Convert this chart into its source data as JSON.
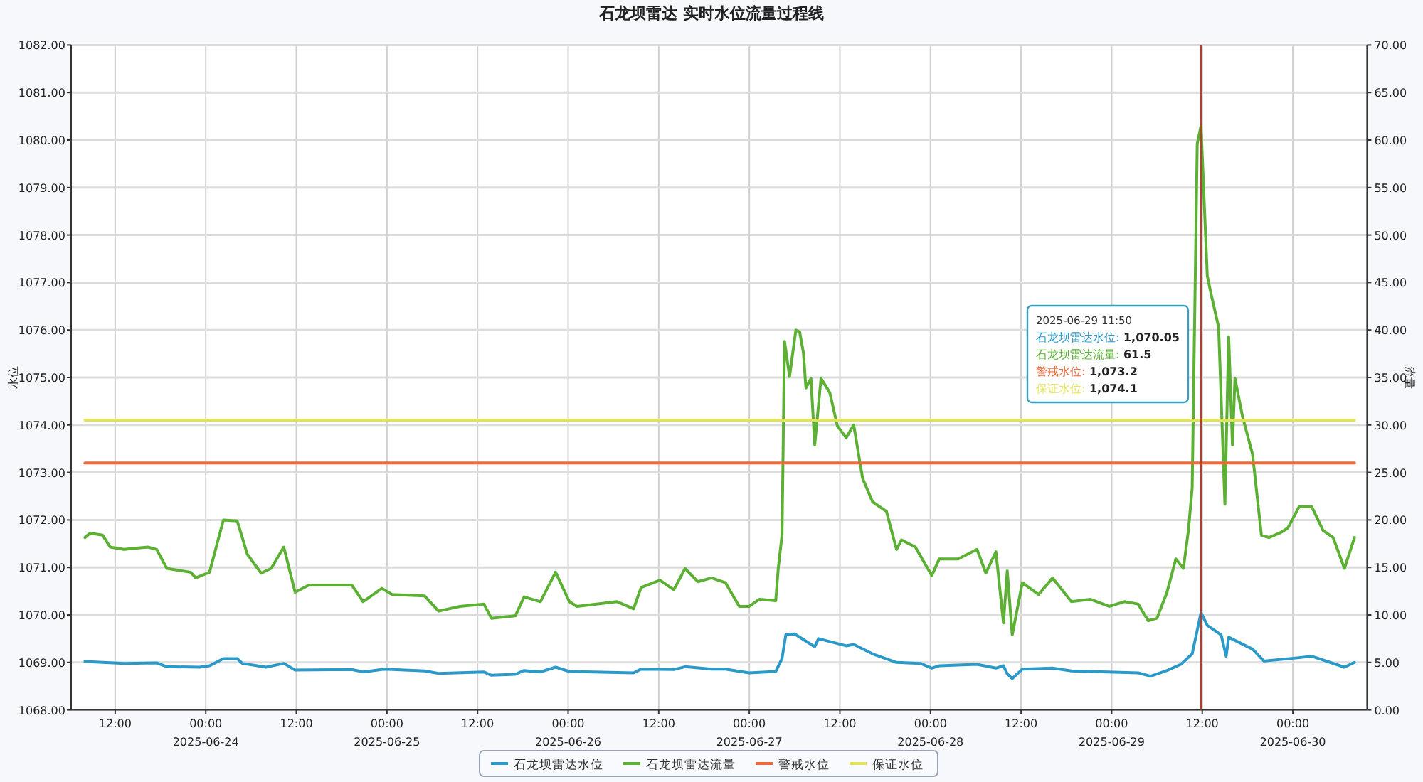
{
  "chart_data": {
    "type": "line",
    "title": "石龙坝雷达 实时水位流量过程线",
    "ylabel": "水位",
    "y2label": "流量",
    "xlim": [
      "2025-06-23T06:10",
      "2025-06-30T09:50"
    ],
    "xticks": [
      {
        "value": "2025-06-23T12:00",
        "label": "12:00"
      },
      {
        "value": "2025-06-24T00:00",
        "label": "00:00\n2025-06-24"
      },
      {
        "value": "2025-06-24T12:00",
        "label": "12:00"
      },
      {
        "value": "2025-06-25T00:00",
        "label": "00:00\n2025-06-25"
      },
      {
        "value": "2025-06-25T12:00",
        "label": "12:00"
      },
      {
        "value": "2025-06-26T00:00",
        "label": "00:00\n2025-06-26"
      },
      {
        "value": "2025-06-26T12:00",
        "label": "12:00"
      },
      {
        "value": "2025-06-27T00:00",
        "label": "00:00\n2025-06-27"
      },
      {
        "value": "2025-06-27T12:00",
        "label": "12:00"
      },
      {
        "value": "2025-06-28T00:00",
        "label": "00:00\n2025-06-28"
      },
      {
        "value": "2025-06-28T12:00",
        "label": "12:00"
      },
      {
        "value": "2025-06-29T00:00",
        "label": "00:00\n2025-06-29"
      },
      {
        "value": "2025-06-29T12:00",
        "label": "12:00"
      },
      {
        "value": "2025-06-30T00:00",
        "label": "00:00\n2025-06-30"
      }
    ],
    "ylim": [
      1068,
      1082
    ],
    "yticks": [
      {
        "value": 1068,
        "label": "1068.00"
      },
      {
        "value": 1069,
        "label": "1069.00"
      },
      {
        "value": 1070,
        "label": "1070.00"
      },
      {
        "value": 1071,
        "label": "1071.00"
      },
      {
        "value": 1072,
        "label": "1072.00"
      },
      {
        "value": 1073,
        "label": "1073.00"
      },
      {
        "value": 1074,
        "label": "1074.00"
      },
      {
        "value": 1075,
        "label": "1075.00"
      },
      {
        "value": 1076,
        "label": "1076.00"
      },
      {
        "value": 1077,
        "label": "1077.00"
      },
      {
        "value": 1078,
        "label": "1078.00"
      },
      {
        "value": 1079,
        "label": "1079.00"
      },
      {
        "value": 1080,
        "label": "1080.00"
      },
      {
        "value": 1081,
        "label": "1081.00"
      },
      {
        "value": 1082,
        "label": "1082.00"
      }
    ],
    "y2lim": [
      0,
      70
    ],
    "y2ticks": [
      {
        "value": 0,
        "label": "0.00"
      },
      {
        "value": 5,
        "label": "5.00"
      },
      {
        "value": 10,
        "label": "10.00"
      },
      {
        "value": 15,
        "label": "15.00"
      },
      {
        "value": 20,
        "label": "20.00"
      },
      {
        "value": 25,
        "label": "25.00"
      },
      {
        "value": 30,
        "label": "30.00"
      },
      {
        "value": 35,
        "label": "35.00"
      },
      {
        "value": 40,
        "label": "40.00"
      },
      {
        "value": 45,
        "label": "45.00"
      },
      {
        "value": 50,
        "label": "50.00"
      },
      {
        "value": 55,
        "label": "55.00"
      },
      {
        "value": 60,
        "label": "60.00"
      },
      {
        "value": 65,
        "label": "65.00"
      },
      {
        "value": 70,
        "label": "70.00"
      }
    ],
    "grid": true,
    "legend": "bottom",
    "ref_lines": [
      {
        "axis": "x",
        "value": "2025-06-29T11:50",
        "color": "#c0392b"
      }
    ],
    "annotations": [
      "2025-06-29 11:50",
      "石龙坝雷达水位: 1,070.05",
      "石龙坝雷达流量: 61.5",
      "警戒水位: 1,073.2",
      "保证水位: 1,074.1"
    ],
    "series": [
      {
        "name": "石龙坝雷达水位",
        "color": "#2b9ac9",
        "x": [
          "2025-06-23T08:00",
          "2025-06-23T13:10",
          "2025-06-23T17:30",
          "2025-06-23T18:50",
          "2025-06-23T23:10",
          "2025-06-24T00:30",
          "2025-06-24T02:20",
          "2025-06-24T04:10",
          "2025-06-24T04:50",
          "2025-06-24T08:00",
          "2025-06-24T10:20",
          "2025-06-24T11:50",
          "2025-06-24T19:20",
          "2025-06-24T20:50",
          "2025-06-24T23:40",
          "2025-06-25T05:00",
          "2025-06-25T06:50",
          "2025-06-25T12:50",
          "2025-06-25T13:50",
          "2025-06-25T17:00",
          "2025-06-25T18:10",
          "2025-06-25T20:20",
          "2025-06-25T22:20",
          "2025-06-26T00:10",
          "2025-06-26T08:40",
          "2025-06-26T09:40",
          "2025-06-26T14:00",
          "2025-06-26T15:30",
          "2025-06-26T19:00",
          "2025-06-26T20:50",
          "2025-06-27T00:00",
          "2025-06-27T03:30",
          "2025-06-27T04:20",
          "2025-06-27T04:50",
          "2025-06-27T06:00",
          "2025-06-27T08:40",
          "2025-06-27T09:10",
          "2025-06-27T12:50",
          "2025-06-27T13:50",
          "2025-06-27T16:20",
          "2025-06-27T19:30",
          "2025-06-27T22:40",
          "2025-06-28T00:10",
          "2025-06-28T01:10",
          "2025-06-28T06:10",
          "2025-06-28T08:40",
          "2025-06-28T09:40",
          "2025-06-28T10:10",
          "2025-06-28T10:50",
          "2025-06-28T12:10",
          "2025-06-28T16:10",
          "2025-06-28T18:40",
          "2025-06-29T03:30",
          "2025-06-29T05:10",
          "2025-06-29T07:20",
          "2025-06-29T09:10",
          "2025-06-29T10:40",
          "2025-06-29T11:50",
          "2025-06-29T12:40",
          "2025-06-29T14:30",
          "2025-06-29T15:10",
          "2025-06-29T15:30",
          "2025-06-29T18:40",
          "2025-06-29T20:10",
          "2025-06-30T00:50",
          "2025-06-30T02:30",
          "2025-06-30T06:50",
          "2025-06-30T08:10"
        ],
        "values": [
          1069.02,
          1068.98,
          1068.99,
          1068.91,
          1068.9,
          1068.93,
          1069.08,
          1069.08,
          1068.98,
          1068.9,
          1068.98,
          1068.84,
          1068.85,
          1068.8,
          1068.86,
          1068.82,
          1068.77,
          1068.8,
          1068.73,
          1068.75,
          1068.83,
          1068.8,
          1068.9,
          1068.81,
          1068.78,
          1068.86,
          1068.85,
          1068.91,
          1068.86,
          1068.86,
          1068.78,
          1068.81,
          1069.08,
          1069.58,
          1069.6,
          1069.33,
          1069.5,
          1069.35,
          1069.38,
          1069.18,
          1069.0,
          1068.98,
          1068.88,
          1068.93,
          1068.96,
          1068.88,
          1068.93,
          1068.76,
          1068.66,
          1068.86,
          1068.88,
          1068.82,
          1068.78,
          1068.71,
          1068.83,
          1068.96,
          1069.18,
          1070.05,
          1069.78,
          1069.58,
          1069.13,
          1069.53,
          1069.28,
          1069.03,
          1069.1,
          1069.13,
          1068.9,
          1069.0
        ]
      },
      {
        "name": "石龙坝雷达流量",
        "color": "#5cb135",
        "axis": "y2",
        "x": [
          "2025-06-23T08:00",
          "2025-06-23T08:40",
          "2025-06-23T10:20",
          "2025-06-23T11:20",
          "2025-06-23T13:10",
          "2025-06-23T16:20",
          "2025-06-23T17:30",
          "2025-06-23T18:50",
          "2025-06-23T22:00",
          "2025-06-23T22:40",
          "2025-06-24T00:30",
          "2025-06-24T02:20",
          "2025-06-24T04:10",
          "2025-06-24T05:30",
          "2025-06-24T07:20",
          "2025-06-24T08:40",
          "2025-06-24T10:20",
          "2025-06-24T11:50",
          "2025-06-24T13:40",
          "2025-06-24T19:20",
          "2025-06-24T20:50",
          "2025-06-24T23:20",
          "2025-06-25T00:40",
          "2025-06-25T05:00",
          "2025-06-25T06:50",
          "2025-06-25T09:40",
          "2025-06-25T12:50",
          "2025-06-25T13:50",
          "2025-06-25T17:00",
          "2025-06-25T18:10",
          "2025-06-25T20:20",
          "2025-06-25T22:20",
          "2025-06-26T00:10",
          "2025-06-26T01:10",
          "2025-06-26T06:30",
          "2025-06-26T08:40",
          "2025-06-26T09:40",
          "2025-06-26T12:10",
          "2025-06-26T14:00",
          "2025-06-26T15:30",
          "2025-06-26T17:10",
          "2025-06-26T19:00",
          "2025-06-26T20:50",
          "2025-06-26T22:40",
          "2025-06-27T00:00",
          "2025-06-27T01:20",
          "2025-06-27T03:30",
          "2025-06-27T03:50",
          "2025-06-27T04:20",
          "2025-06-27T04:40",
          "2025-06-27T05:20",
          "2025-06-27T06:10",
          "2025-06-27T06:40",
          "2025-06-27T07:10",
          "2025-06-27T07:30",
          "2025-06-27T08:10",
          "2025-06-27T08:40",
          "2025-06-27T09:30",
          "2025-06-27T10:40",
          "2025-06-27T11:40",
          "2025-06-27T12:50",
          "2025-06-27T13:50",
          "2025-06-27T15:00",
          "2025-06-27T16:20",
          "2025-06-27T18:10",
          "2025-06-27T19:30",
          "2025-06-27T20:10",
          "2025-06-27T22:00",
          "2025-06-28T00:10",
          "2025-06-28T01:10",
          "2025-06-28T03:40",
          "2025-06-28T06:10",
          "2025-06-28T07:20",
          "2025-06-28T08:40",
          "2025-06-28T09:40",
          "2025-06-28T10:10",
          "2025-06-28T10:50",
          "2025-06-28T12:10",
          "2025-06-28T14:20",
          "2025-06-28T16:10",
          "2025-06-28T18:40",
          "2025-06-28T21:10",
          "2025-06-28T23:40",
          "2025-06-29T01:40",
          "2025-06-29T03:30",
          "2025-06-29T04:50",
          "2025-06-29T06:00",
          "2025-06-29T07:20",
          "2025-06-29T08:30",
          "2025-06-29T09:30",
          "2025-06-29T10:10",
          "2025-06-29T10:40",
          "2025-06-29T11:20",
          "2025-06-29T11:50",
          "2025-06-29T12:40",
          "2025-06-29T13:10",
          "2025-06-29T14:10",
          "2025-06-29T15:00",
          "2025-06-29T15:30",
          "2025-06-29T16:00",
          "2025-06-29T16:20",
          "2025-06-29T17:20",
          "2025-06-29T18:40",
          "2025-06-29T19:50",
          "2025-06-29T20:50",
          "2025-06-29T22:20",
          "2025-06-29T23:20",
          "2025-06-30T00:50",
          "2025-06-30T02:30",
          "2025-06-30T04:00",
          "2025-06-30T05:20",
          "2025-06-30T06:50",
          "2025-06-30T08:10"
        ],
        "values": [
          18.15,
          18.6,
          18.4,
          17.15,
          16.9,
          17.15,
          16.9,
          14.9,
          14.5,
          13.9,
          14.5,
          20,
          19.9,
          16.4,
          14.4,
          14.9,
          17.15,
          12.4,
          13.15,
          13.15,
          11.4,
          12.8,
          12.15,
          12.0,
          10.4,
          10.9,
          11.15,
          9.65,
          9.9,
          11.9,
          11.4,
          14.5,
          11.4,
          10.9,
          11.4,
          10.65,
          12.9,
          13.65,
          12.65,
          14.9,
          13.5,
          13.9,
          13.4,
          10.9,
          10.9,
          11.65,
          11.5,
          14.9,
          18.4,
          38.8,
          35.1,
          40,
          39.8,
          37.6,
          33.9,
          34.9,
          27.9,
          34.9,
          33.4,
          29.9,
          28.65,
          30,
          24.4,
          21.9,
          20.9,
          16.9,
          17.9,
          17.15,
          14.15,
          15.9,
          15.9,
          16.9,
          14.4,
          16.65,
          9.15,
          14.65,
          7.9,
          13.4,
          12.15,
          13.9,
          11.4,
          11.65,
          10.9,
          11.4,
          11.15,
          9.4,
          9.65,
          12.4,
          15.9,
          14.9,
          18.9,
          23.4,
          59.6,
          61.5,
          45.7,
          43.8,
          40.3,
          21.65,
          39.3,
          27.9,
          34.9,
          30.9,
          26.9,
          18.4,
          18.15,
          18.65,
          19.15,
          21.4,
          21.4,
          18.9,
          18.15,
          14.9,
          18.15
        ]
      },
      {
        "name": "警戒水位",
        "color": "#ee6a3c",
        "x": [
          "2025-06-23T08:00",
          "2025-06-30T08:10"
        ],
        "values": [
          1073.2,
          1073.2
        ]
      },
      {
        "name": "保证水位",
        "color": "#e3e35a",
        "x": [
          "2025-06-23T08:00",
          "2025-06-30T08:10"
        ],
        "values": [
          1074.1,
          1074.1
        ]
      }
    ]
  }
}
